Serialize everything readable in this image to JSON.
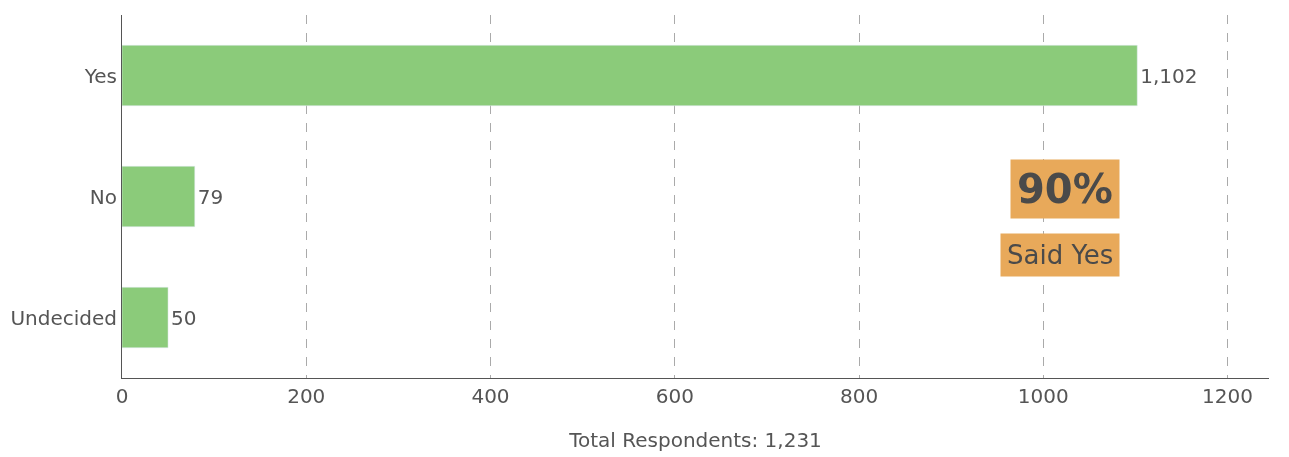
{
  "chart_data": {
    "type": "bar",
    "orientation": "horizontal",
    "categories": [
      "Yes",
      "No",
      "Undecided"
    ],
    "values": [
      1102,
      79,
      50
    ],
    "value_labels": [
      "1,102",
      "79",
      "50"
    ],
    "color": "#8bcb7a",
    "xlim": [
      0,
      1245
    ],
    "xticks": [
      0,
      200,
      400,
      600,
      800,
      1000,
      1200
    ],
    "xlabel": "Total Respondents: 1,231",
    "grid": "x",
    "annotations": [
      "90%",
      "Said Yes"
    ]
  }
}
